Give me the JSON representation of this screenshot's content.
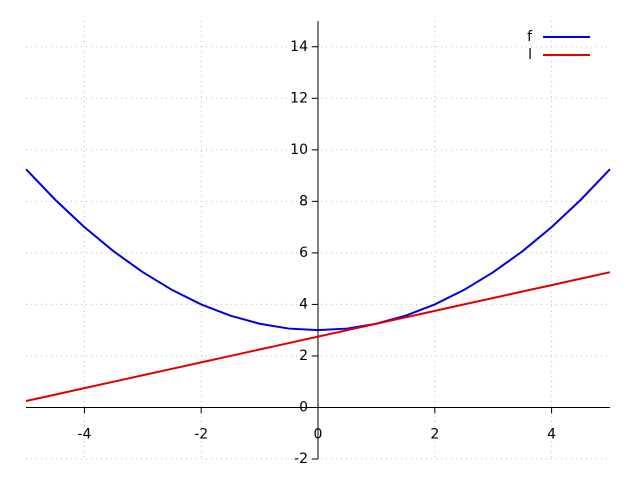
{
  "chart_data": {
    "type": "line",
    "x": [
      -5,
      -4.5,
      -4,
      -3.5,
      -3,
      -2.5,
      -2,
      -1.5,
      -1,
      -0.5,
      0,
      0.5,
      1,
      1.5,
      2,
      2.5,
      3,
      3.5,
      4,
      4.5,
      5
    ],
    "series": [
      {
        "name": "f",
        "color": "#0000e0",
        "values": [
          9.25,
          8.0625,
          7,
          6.0625,
          5.25,
          4.5625,
          4,
          3.5625,
          3.25,
          3.0625,
          3,
          3.0625,
          3.25,
          3.5625,
          4,
          4.5625,
          5.25,
          6.0625,
          7,
          8.0625,
          9.25
        ]
      },
      {
        "name": "l",
        "color": "#e00000",
        "values": [
          0.25,
          0.5,
          0.75,
          1,
          1.25,
          1.5,
          1.75,
          2,
          2.25,
          2.5,
          2.75,
          3,
          3.25,
          3.5,
          3.75,
          4,
          4.25,
          4.5,
          4.75,
          5,
          5.25
        ]
      }
    ],
    "xlim": [
      -5,
      5
    ],
    "ylim": [
      -2,
      15
    ],
    "xticks": [
      -4,
      -2,
      0,
      2,
      4
    ],
    "yticks": [
      -2,
      0,
      2,
      4,
      6,
      8,
      10,
      12,
      14
    ],
    "grid": true,
    "legend": "top-right"
  }
}
